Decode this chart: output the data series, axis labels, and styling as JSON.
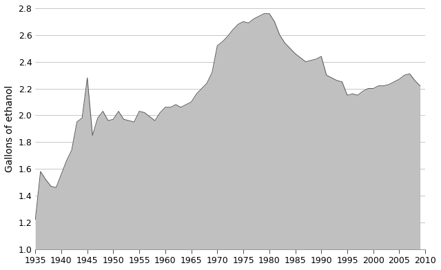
{
  "years": [
    1935,
    1936,
    1937,
    1938,
    1939,
    1940,
    1941,
    1942,
    1943,
    1944,
    1945,
    1946,
    1947,
    1948,
    1949,
    1950,
    1951,
    1952,
    1953,
    1954,
    1955,
    1956,
    1957,
    1958,
    1959,
    1960,
    1961,
    1962,
    1963,
    1964,
    1965,
    1966,
    1967,
    1968,
    1969,
    1970,
    1971,
    1972,
    1973,
    1974,
    1975,
    1976,
    1977,
    1978,
    1979,
    1980,
    1981,
    1982,
    1983,
    1984,
    1985,
    1986,
    1987,
    1988,
    1989,
    1990,
    1991,
    1992,
    1993,
    1994,
    1995,
    1996,
    1997,
    1998,
    1999,
    2000,
    2001,
    2002,
    2003,
    2004,
    2005,
    2006,
    2007,
    2008,
    2009
  ],
  "values": [
    1.22,
    1.58,
    1.52,
    1.47,
    1.46,
    1.56,
    1.66,
    1.74,
    1.95,
    1.98,
    2.28,
    1.85,
    1.98,
    2.03,
    1.96,
    1.97,
    2.03,
    1.97,
    1.96,
    1.95,
    2.03,
    2.02,
    1.99,
    1.96,
    2.02,
    2.06,
    2.06,
    2.08,
    2.06,
    2.08,
    2.1,
    2.16,
    2.2,
    2.24,
    2.32,
    2.52,
    2.55,
    2.59,
    2.64,
    2.68,
    2.7,
    2.69,
    2.72,
    2.74,
    2.76,
    2.76,
    2.7,
    2.6,
    2.54,
    2.5,
    2.46,
    2.43,
    2.4,
    2.41,
    2.42,
    2.44,
    2.3,
    2.28,
    2.26,
    2.25,
    2.15,
    2.16,
    2.15,
    2.18,
    2.2,
    2.2,
    2.22,
    2.22,
    2.23,
    2.25,
    2.27,
    2.3,
    2.31,
    2.26,
    2.22
  ],
  "fill_color": "#c0c0c0",
  "line_color": "#555555",
  "background_color": "#ffffff",
  "ylabel": "Gallons of ethanol",
  "ylim": [
    1.0,
    2.8
  ],
  "xlim": [
    1935,
    2010
  ],
  "yticks": [
    1.0,
    1.2,
    1.4,
    1.6,
    1.8,
    2.0,
    2.2,
    2.4,
    2.6,
    2.8
  ],
  "xticks": [
    1935,
    1940,
    1945,
    1950,
    1955,
    1960,
    1965,
    1970,
    1975,
    1980,
    1985,
    1990,
    1995,
    2000,
    2005,
    2010
  ],
  "grid_color": "#b0b0b0",
  "ylabel_fontsize": 10,
  "tick_fontsize": 9
}
